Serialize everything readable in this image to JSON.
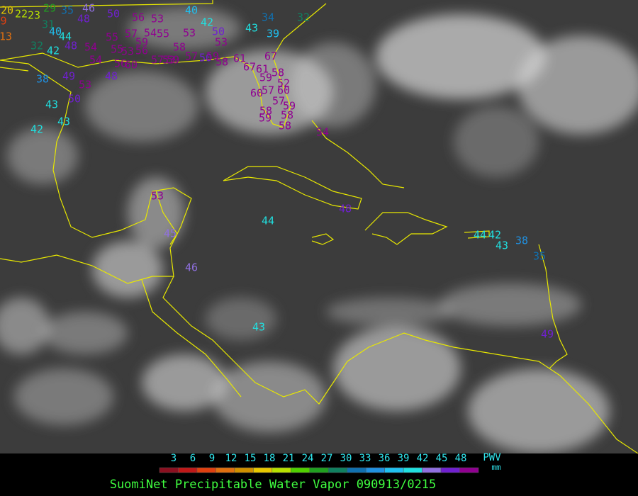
{
  "title": "SuomiNet Precipitable Water Vapor 090913/0215",
  "colorbar": {
    "ticks": [
      3,
      6,
      9,
      12,
      15,
      18,
      21,
      24,
      27,
      30,
      33,
      36,
      39,
      42,
      45,
      48
    ],
    "colors": [
      "#8b1020",
      "#c01818",
      "#e04010",
      "#e07010",
      "#d09000",
      "#e8c800",
      "#b8e000",
      "#50d000",
      "#20a020",
      "#108060",
      "#1070b0",
      "#2090e0",
      "#20c0f0",
      "#20e0e0",
      "#9070e0",
      "#7020d0",
      "#900090"
    ],
    "unit": "PWV",
    "unit_sub": "mm"
  },
  "stations": [
    20,
    9,
    22,
    23,
    29,
    35,
    46,
    48,
    50,
    56,
    53,
    40,
    42,
    43,
    34,
    32,
    39,
    31,
    13,
    40,
    44,
    55,
    57,
    54,
    55,
    53,
    50,
    53,
    32,
    42,
    48,
    54,
    55,
    53,
    59,
    56,
    58,
    67,
    38,
    49,
    53,
    48,
    54,
    56,
    60,
    57,
    53,
    59,
    57,
    50,
    59,
    58,
    61,
    67,
    61,
    58,
    59,
    52,
    57,
    60,
    60,
    57,
    59,
    58,
    59,
    58,
    58,
    43,
    50,
    43,
    42,
    54,
    53,
    45,
    44,
    48,
    44,
    42,
    38,
    43,
    35,
    46,
    43,
    49
  ]
}
